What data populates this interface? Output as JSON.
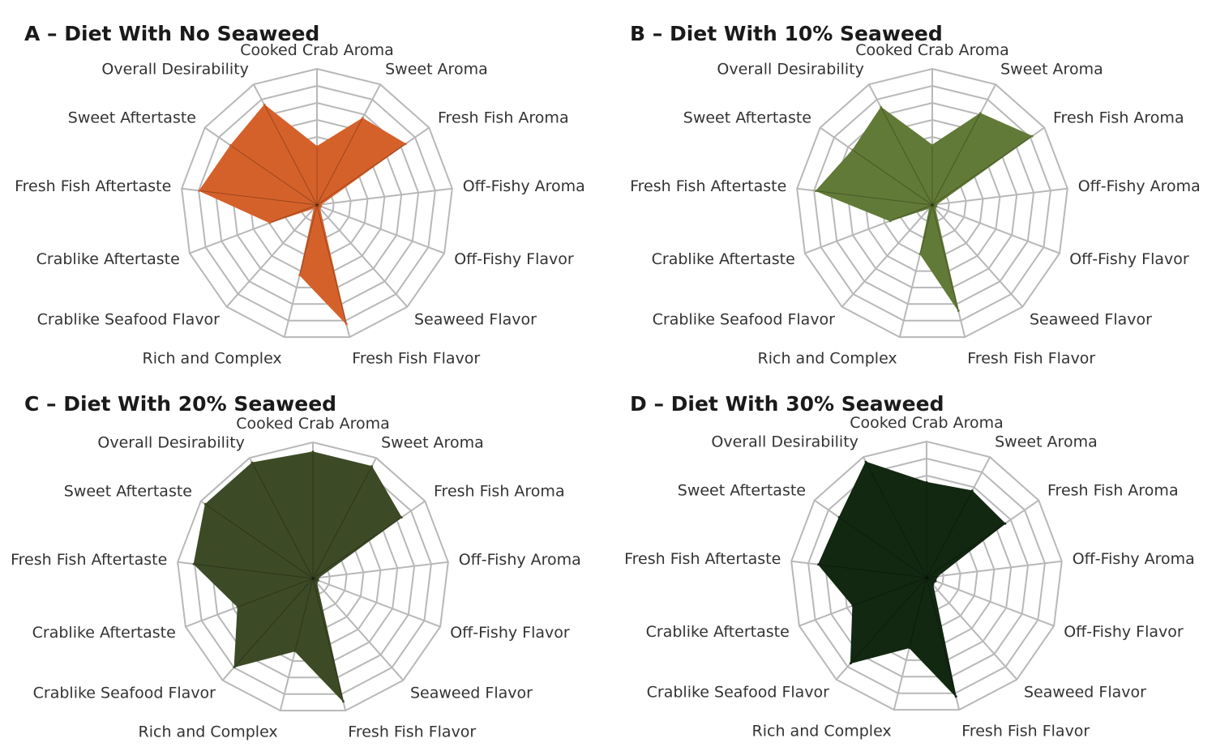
{
  "chart_data": [
    {
      "type": "radar",
      "title": "A – Diet With No Seaweed",
      "color": "#d5612a",
      "axes": [
        "Cooked Crab Aroma",
        "Sweet Aroma",
        "Fresh Fish Aroma",
        "Off-Fishy Aroma",
        "Off-Fishy Flavor",
        "Seaweed Flavor",
        "Fresh Fish Flavor",
        "Rich and Complex",
        "Crablike Seafood Flavor",
        "Crablike Aftertaste",
        "Fresh Fish Aftertaste",
        "Sweet Aftertaste",
        "Overall Desirability"
      ],
      "values": [
        4.3,
        7.2,
        7.9,
        0.3,
        0.3,
        0.3,
        9.0,
        5.3,
        0.3,
        3.7,
        8.7,
        7.7,
        8.3
      ],
      "rlim": [
        0,
        10
      ],
      "grid": true
    },
    {
      "type": "radar",
      "title": "B – Diet With 10% Seaweed",
      "color": "#627a37",
      "axes": [
        "Cooked Crab Aroma",
        "Sweet Aroma",
        "Fresh Fish Aroma",
        "Off-Fishy Aroma",
        "Off-Fishy Flavor",
        "Seaweed Flavor",
        "Fresh Fish Flavor",
        "Rich and Complex",
        "Crablike Seafood Flavor",
        "Crablike Aftertaste",
        "Fresh Fish Aftertaste",
        "Sweet Aftertaste",
        "Overall Desirability"
      ],
      "values": [
        4.4,
        7.6,
        8.9,
        0.3,
        0.3,
        0.3,
        8.0,
        3.7,
        0.3,
        3.3,
        8.6,
        7.1,
        8.1
      ],
      "rlim": [
        0,
        10
      ],
      "grid": true
    },
    {
      "type": "radar",
      "title": "C – Diet With 20% Seaweed",
      "color": "#3d4a26",
      "axes": [
        "Cooked Crab Aroma",
        "Sweet Aroma",
        "Fresh Fish Aroma",
        "Off-Fishy Aroma",
        "Off-Fishy Flavor",
        "Seaweed Flavor",
        "Fresh Fish Flavor",
        "Rich and Complex",
        "Crablike Seafood Flavor",
        "Crablike Aftertaste",
        "Fresh Fish Aftertaste",
        "Sweet Aftertaste",
        "Overall Desirability"
      ],
      "values": [
        9.3,
        9.3,
        7.9,
        0.4,
        0.4,
        0.4,
        9.3,
        5.5,
        8.7,
        5.9,
        8.8,
        9.6,
        9.6
      ],
      "rlim": [
        0,
        10
      ],
      "grid": true
    },
    {
      "type": "radar",
      "title": "D – Diet With 30% Seaweed",
      "color": "#122811",
      "axes": [
        "Cooked Crab Aroma",
        "Sweet Aroma",
        "Fresh Fish Aroma",
        "Off-Fishy Aroma",
        "Off-Fishy Flavor",
        "Seaweed Flavor",
        "Fresh Fish Flavor",
        "Rich and Complex",
        "Crablike Seafood Flavor",
        "Crablike Aftertaste",
        "Fresh Fish Aftertaste",
        "Sweet Aftertaste",
        "Overall Desirability"
      ],
      "values": [
        7.0,
        7.2,
        7.0,
        0.8,
        0.7,
        0.7,
        9.0,
        5.3,
        8.4,
        5.8,
        8.0,
        7.8,
        9.6
      ],
      "rlim": [
        0,
        10
      ],
      "grid": true
    }
  ]
}
